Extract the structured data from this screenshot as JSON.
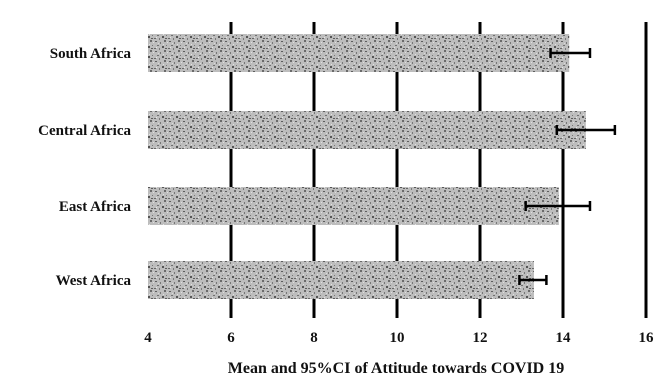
{
  "chart_data": {
    "type": "bar",
    "orientation": "horizontal",
    "categories": [
      "South Africa",
      "Central Africa",
      "East Africa",
      "West Africa"
    ],
    "series": [
      {
        "values": [
          14.15,
          14.55,
          13.9,
          13.3
        ],
        "ci_lower": [
          13.7,
          13.85,
          13.1,
          12.95
        ],
        "ci_upper": [
          14.65,
          15.25,
          14.65,
          13.6
        ]
      }
    ],
    "xlabel": "Mean and 95%CI of Attitude towards COVID 19",
    "ylabel": "",
    "xlim": [
      4,
      16
    ],
    "xticks": [
      4,
      6,
      8,
      10,
      12,
      14,
      16
    ],
    "grid": "vertical",
    "bar_fill": "gray-speckled",
    "colors": {
      "bar": "#b9b9b9",
      "speckle": "#6a6a6a",
      "grid": "#000000"
    }
  }
}
